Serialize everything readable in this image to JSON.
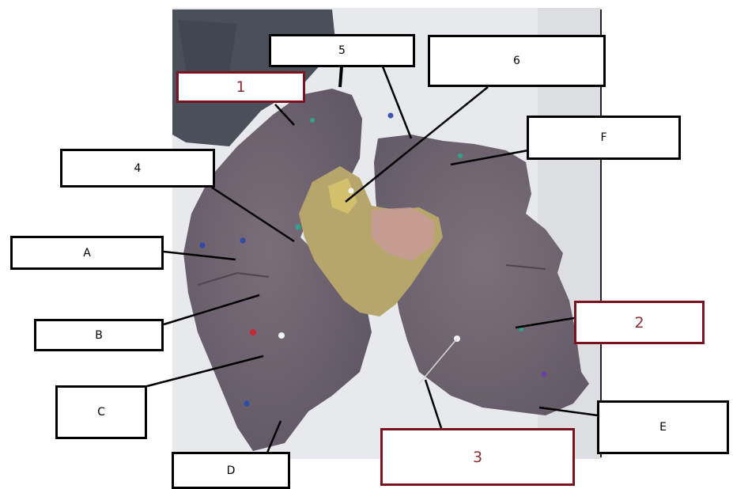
{
  "labels": {
    "num_1": "1",
    "num_2": "2",
    "num_3": "3",
    "num_4": "4",
    "num_5": "5",
    "num_6": "6",
    "letter_a": "A",
    "letter_b": "B",
    "letter_c": "C",
    "letter_d": "D",
    "letter_e": "E",
    "letter_f": "F"
  },
  "colors": {
    "box_border_black": "#000000",
    "box_border_red": "#7b1220",
    "tissue": "#6f6470",
    "hilum": "#b9a86a",
    "tray": "#e9ebee"
  }
}
